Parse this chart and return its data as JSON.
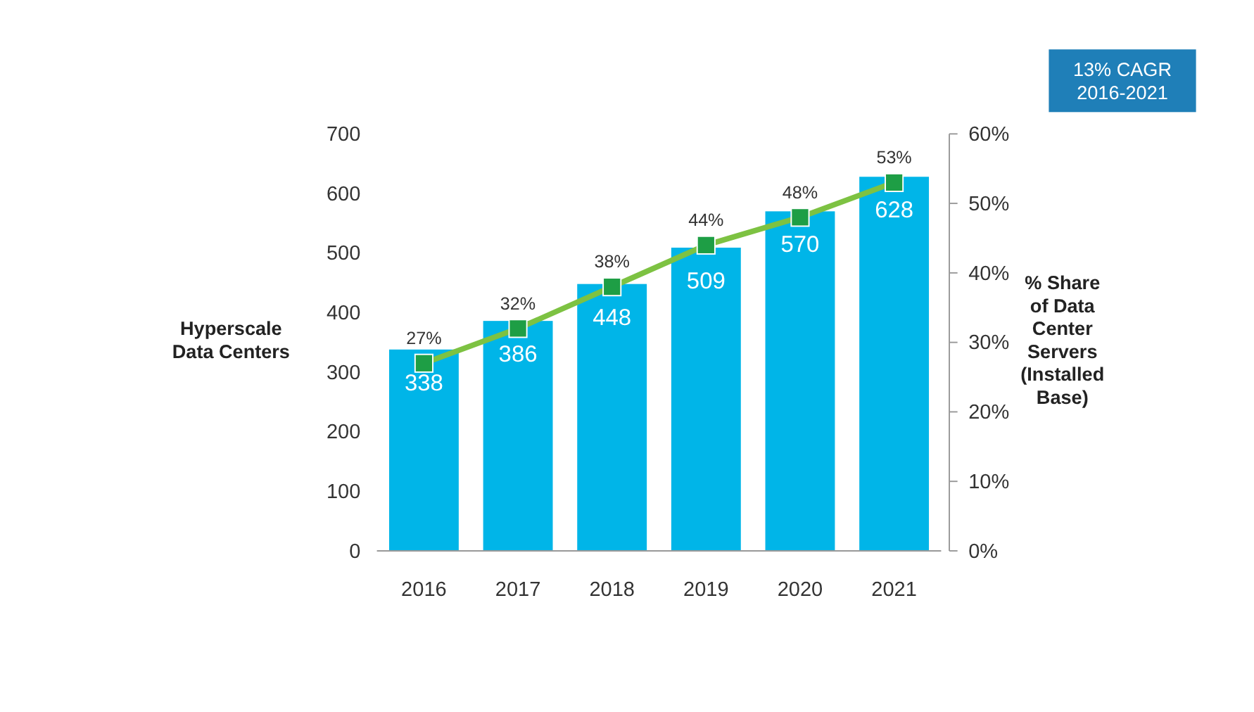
{
  "chart_data": {
    "type": "bar",
    "categories": [
      "2016",
      "2017",
      "2018",
      "2019",
      "2020",
      "2021"
    ],
    "series": [
      {
        "color": "#00b5e8",
        "values": [
          338,
          386,
          448,
          509,
          570,
          628
        ]
      },
      {
        "type": "line",
        "axis": "y2",
        "color": "#7dc242",
        "values": [
          27,
          32,
          38,
          44,
          48,
          53
        ],
        "value_labels": [
          "27%",
          "32%",
          "38%",
          "44%",
          "48%",
          "53%"
        ]
      }
    ],
    "ylabel": "Hyperscale\nData Centers",
    "y2label": "% Share\nof Data\nCenter\nServers\n(Installed\nBase)",
    "ylim": [
      0,
      700
    ],
    "yticks": [
      0,
      100,
      200,
      300,
      400,
      500,
      600,
      700
    ],
    "y2lim": [
      0,
      60
    ],
    "y2ticks": [
      {
        "value": 0,
        "label": "0%"
      },
      {
        "value": 10,
        "label": "10%"
      },
      {
        "value": 20,
        "label": "20%"
      },
      {
        "value": 30,
        "label": "30%"
      },
      {
        "value": 40,
        "label": "40%"
      },
      {
        "value": 50,
        "label": "50%"
      },
      {
        "value": 60,
        "label": "60%"
      }
    ],
    "annotations": [
      "13% CAGR\n2016-2021"
    ],
    "data_labels": true,
    "marker": "square",
    "grid": false
  }
}
